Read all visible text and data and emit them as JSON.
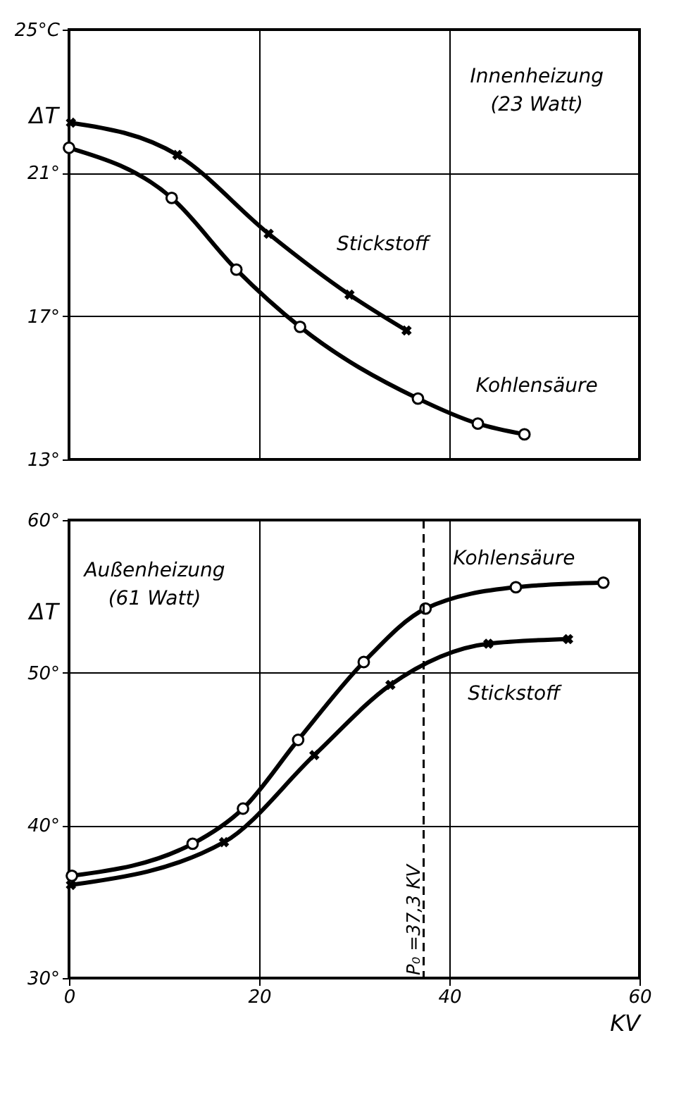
{
  "chart_data": [
    {
      "type": "line",
      "ylabel": "ΔT",
      "xlim": [
        0,
        60
      ],
      "xticks": [
        0,
        20,
        40,
        60
      ],
      "ylim": [
        13,
        25
      ],
      "yticks": [
        {
          "value": 13,
          "label": "13°"
        },
        {
          "value": 17,
          "label": "17°"
        },
        {
          "value": 21,
          "label": "21°"
        },
        {
          "value": 25,
          "label": "25°C"
        }
      ],
      "tick_labels": "y",
      "grid": true,
      "annotations": [
        "Innenheizung",
        "(23 Watt)"
      ],
      "series": [
        {
          "name": "Stickstoff",
          "color": "#000000",
          "marker": "cross",
          "x": [
            0.2,
            11.4,
            21.0,
            29.5,
            35.5
          ],
          "values": [
            22.4,
            21.5,
            19.3,
            17.6,
            16.6
          ]
        },
        {
          "name": "Kohlensäure",
          "color": "#000000",
          "marker": "circle",
          "x": [
            0,
            10.8,
            17.6,
            24.3,
            36.7,
            43.0,
            47.9
          ],
          "values": [
            21.7,
            20.3,
            18.3,
            16.7,
            14.7,
            14.0,
            13.7
          ]
        }
      ]
    },
    {
      "type": "line",
      "ylabel": "ΔT",
      "xlabel": "KV",
      "xlim": [
        0,
        60
      ],
      "xticks": [
        0,
        20,
        40,
        60
      ],
      "ylim": [
        30,
        60
      ],
      "yticks": [
        {
          "value": 30,
          "label": "30°"
        },
        {
          "value": 40,
          "label": "40°"
        },
        {
          "value": 50,
          "label": "50°"
        },
        {
          "value": 60,
          "label": "60°"
        }
      ],
      "grid": true,
      "annotations": [
        "Außenheizung",
        "(61 Watt)"
      ],
      "ref_lines": [
        {
          "axis": "x",
          "value": 37.3,
          "label": "P₀ =37,3 KV",
          "line_style": "dashed"
        }
      ],
      "series": [
        {
          "name": "Kohlensäure",
          "color": "#000000",
          "marker": "circle",
          "x": [
            0.3,
            13.0,
            18.3,
            24.1,
            31.0,
            37.5,
            47.0,
            56.2
          ],
          "values": [
            36.7,
            38.8,
            41.1,
            45.6,
            50.7,
            54.2,
            55.6,
            55.9
          ]
        },
        {
          "name": "Stickstoff",
          "color": "#000000",
          "marker": "cross",
          "x": [
            0.2,
            16.3,
            25.8,
            33.8,
            44.1,
            52.5
          ],
          "values": [
            36.1,
            38.9,
            44.6,
            49.2,
            51.9,
            52.2
          ]
        }
      ]
    }
  ]
}
